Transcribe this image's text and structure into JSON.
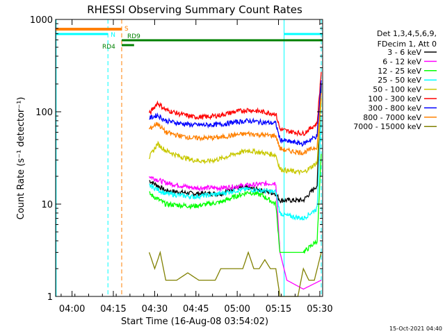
{
  "chart_data": {
    "type": "line",
    "title": "RHESSI Observing Summary Count Rates",
    "xlabel": "Start Time (16-Aug-08 03:54:02)",
    "ylabel": "Count Rate (s⁻¹ detector⁻¹)",
    "y_scale": "log",
    "ylim": [
      1,
      1000
    ],
    "xlim_minutes_after_03_54_02": [
      0,
      97
    ],
    "x_ticks": [
      "04:00",
      "04:15",
      "04:30",
      "04:45",
      "05:00",
      "05:15",
      "05:30"
    ],
    "x_tick_minutes": [
      5.97,
      20.97,
      35.97,
      50.97,
      65.97,
      80.97,
      95.97
    ],
    "y_ticks": [
      "1",
      "10",
      "100",
      "1000"
    ],
    "y_tick_values": [
      1,
      10,
      100,
      1000
    ],
    "legend_header": [
      "Det 1,3,4,5,6,9,",
      "FDecim 1, Att 0"
    ],
    "legend_position": "right",
    "series": [
      {
        "name": "3 - 6 keV",
        "color": "#000000",
        "x": [
          34,
          40,
          50,
          60,
          65,
          70,
          75,
          80,
          81.5,
          84,
          90,
          95,
          96.5
        ],
        "values": [
          18,
          14,
          13,
          13,
          15,
          15,
          14,
          13,
          11,
          11,
          11,
          16,
          200
        ]
      },
      {
        "name": "6 - 12 keV",
        "color": "#ff00ff",
        "x": [
          34,
          40,
          50,
          60,
          70,
          80,
          81.5,
          84,
          90,
          96.5
        ],
        "values": [
          20,
          17,
          15,
          15,
          16,
          17,
          3,
          1.5,
          1.2,
          1.5
        ]
      },
      {
        "name": "12 - 25 keV",
        "color": "#00ff00",
        "x": [
          34,
          40,
          50,
          60,
          65,
          70,
          75,
          80,
          81.5,
          84,
          90,
          95,
          96.5
        ],
        "values": [
          13,
          10,
          9.5,
          10.5,
          12,
          13.5,
          12.5,
          10,
          3,
          3,
          3,
          4,
          35
        ]
      },
      {
        "name": "25 - 50 keV",
        "color": "#00ffff",
        "x": [
          34,
          40,
          50,
          60,
          65,
          70,
          75,
          80,
          81.5,
          84,
          90,
          95,
          96.5
        ],
        "values": [
          16,
          13,
          12,
          13,
          14,
          14.5,
          14,
          13.5,
          8,
          7.5,
          7,
          9,
          90
        ]
      },
      {
        "name": "50 - 100 keV",
        "color": "#c8c800",
        "x": [
          34,
          37,
          40,
          45,
          50,
          55,
          60,
          65,
          70,
          75,
          80,
          81.5,
          84,
          90,
          95,
          96.5
        ],
        "values": [
          32,
          45,
          38,
          33,
          30,
          29,
          31,
          35,
          38,
          36,
          34,
          24,
          23,
          22,
          28,
          140
        ]
      },
      {
        "name": "100 - 300 keV",
        "color": "#ff0000",
        "x": [
          34,
          37,
          40,
          45,
          50,
          55,
          60,
          65,
          70,
          75,
          80,
          81.5,
          84,
          90,
          95,
          96.5
        ],
        "values": [
          95,
          125,
          105,
          95,
          88,
          88,
          92,
          100,
          105,
          100,
          95,
          65,
          62,
          58,
          75,
          270
        ]
      },
      {
        "name": "300 - 800 keV",
        "color": "#0000ff",
        "x": [
          34,
          37,
          40,
          45,
          50,
          55,
          60,
          65,
          70,
          75,
          80,
          81.5,
          84,
          90,
          95,
          96.5
        ],
        "values": [
          85,
          92,
          80,
          75,
          72,
          72,
          73,
          77,
          80,
          77,
          75,
          50,
          48,
          45,
          55,
          220
        ]
      },
      {
        "name": "800 - 7000 keV",
        "color": "#ff8000",
        "x": [
          34,
          37,
          40,
          45,
          50,
          55,
          60,
          65,
          70,
          75,
          80,
          81.5,
          84,
          90,
          95,
          96.5
        ],
        "values": [
          65,
          75,
          60,
          55,
          52,
          52,
          53,
          56,
          58,
          56,
          55,
          40,
          38,
          36,
          42,
          160
        ]
      },
      {
        "name": "7000 - 15000 keV",
        "color": "#808000",
        "x": [
          34,
          36,
          38,
          40,
          44,
          48,
          52,
          56,
          58,
          60,
          62,
          64,
          66,
          68,
          70,
          72,
          74,
          76,
          78,
          80,
          81.5,
          84,
          88,
          90,
          92,
          94,
          96.5
        ],
        "values": [
          3,
          2,
          3,
          1.5,
          1.5,
          1.8,
          1.5,
          1.5,
          1.5,
          2,
          2,
          2,
          2,
          2,
          3,
          2,
          2,
          2.5,
          2,
          2,
          1,
          1,
          1,
          2,
          1.5,
          1.5,
          3
        ]
      }
    ],
    "status_bars": [
      {
        "label": "S",
        "color": "#ff8000",
        "segments": [
          [
            0,
            24
          ]
        ]
      },
      {
        "label": "N",
        "color": "#00ffff",
        "segments": [
          [
            0,
            19
          ],
          [
            83,
            97
          ]
        ]
      },
      {
        "label": "RD9",
        "color": "#008000",
        "segments": [
          [
            24,
            97
          ]
        ]
      },
      {
        "label": "RD4",
        "color": "#008000",
        "segments": [
          [
            24,
            28.5
          ]
        ]
      }
    ],
    "vertical_markers": [
      {
        "x": 0.2,
        "color": "#00ffff",
        "style": "solid"
      },
      {
        "x": 19,
        "color": "#00ffff",
        "style": "dashed"
      },
      {
        "x": 24,
        "color": "#ff8000",
        "style": "dashed"
      },
      {
        "x": 83,
        "color": "#00ffff",
        "style": "solid"
      },
      {
        "x": 96.5,
        "color": "#00ffff",
        "style": "dashed"
      }
    ],
    "footer_timestamp": "15-Oct-2021 04:40"
  }
}
